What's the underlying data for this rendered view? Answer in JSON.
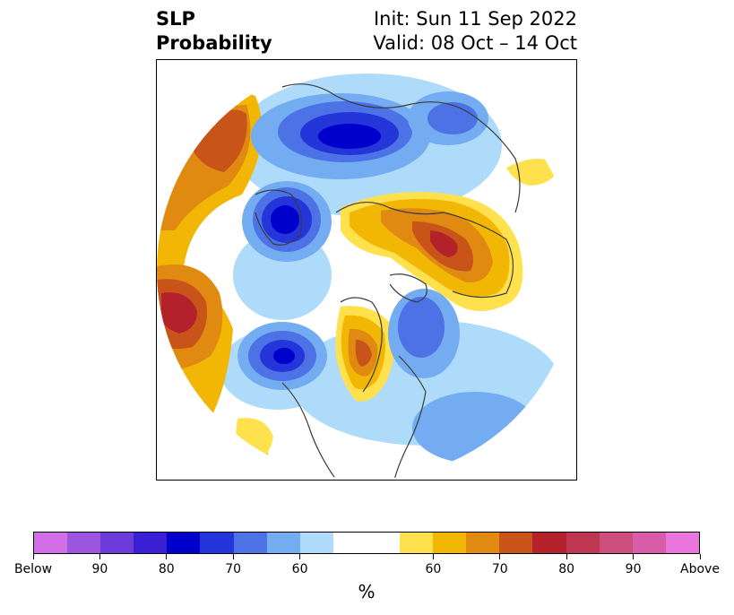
{
  "title": {
    "left_line1": "SLP",
    "left_line2": "Probability",
    "right_line1": "Init: Sun 11 Sep 2022",
    "right_line2": "Valid: 08 Oct – 14 Oct"
  },
  "colorbar": {
    "colors": [
      "#d36fe6",
      "#9d55e0",
      "#6d3bd9",
      "#3b1fd4",
      "#0000cc",
      "#2436d9",
      "#4c72e6",
      "#74acf2",
      "#aedbf9",
      "#ffffff",
      "#ffffff",
      "#ffe14d",
      "#f2b705",
      "#e08a12",
      "#c8541a",
      "#b3222a",
      "#bf3650",
      "#cc4e7c",
      "#d95ca8",
      "#e876dc"
    ],
    "labels": [
      {
        "text": "Below",
        "index": 0
      },
      {
        "text": "90",
        "index": 2
      },
      {
        "text": "80",
        "index": 4
      },
      {
        "text": "70",
        "index": 6
      },
      {
        "text": "60",
        "index": 8
      },
      {
        "text": "60",
        "index": 12
      },
      {
        "text": "70",
        "index": 14
      },
      {
        "text": "80",
        "index": 16
      },
      {
        "text": "90",
        "index": 18
      },
      {
        "text": "Above",
        "index": 20
      }
    ],
    "unit": "%"
  },
  "map": {
    "projection": "north-polar-stereographic",
    "field": "SLP probability",
    "features": [
      {
        "name": "north-pacific-above",
        "category": "above",
        "level": "70-75"
      },
      {
        "name": "north-atlantic-above",
        "category": "above",
        "level": "75-80"
      },
      {
        "name": "eurasia-siberia-above",
        "category": "above",
        "level": "75-80"
      },
      {
        "name": "western-canada-above",
        "category": "above",
        "level": "70-75"
      },
      {
        "name": "eastern-siberia-below",
        "category": "below",
        "level": "85-90"
      },
      {
        "name": "arctic-alaska-below",
        "category": "below",
        "level": "85-90"
      },
      {
        "name": "north-atlantic-below",
        "category": "below",
        "level": "80-85"
      },
      {
        "name": "eastern-pacific-below",
        "category": "below",
        "level": "60-65"
      }
    ]
  }
}
